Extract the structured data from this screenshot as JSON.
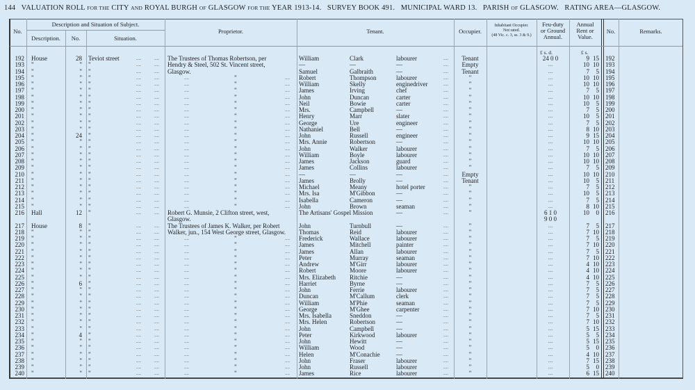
{
  "header": {
    "page_no": "144",
    "title_parts": [
      "VALUATION ROLL",
      "FOR THE",
      "CITY",
      "AND",
      "ROYAL BURGH",
      "OF",
      "GLASGOW",
      "FOR THE",
      "YEAR 1913-14.",
      "SURVEY BOOK 491.",
      "MUNICIPAL WARD 13.",
      "PARISH",
      "OF",
      "GLASGOW.",
      "RATING AREA—GLASGOW."
    ]
  },
  "columns": {
    "no": "No.",
    "description_group": "Description and Situation of Subject.",
    "description": "Description.",
    "number": "No.",
    "situation": "Situation.",
    "proprietor": "Proprietor.",
    "tenant": "Tenant.",
    "occupier": "Occupier.",
    "inhabitant_1": "Inhabitant Occupier.",
    "inhabitant_2": "Not rated.",
    "inhabitant_3": "(48 Vic. c. 3, ss. 3 & 9.)",
    "feu_1": "Feu-duty",
    "feu_2": "or Ground",
    "feu_3": "Annual.",
    "rent_1": "Annual",
    "rent_2": "Rent or",
    "rent_3": "Value.",
    "no2": "No.",
    "remarks": "Remarks.",
    "feu_units": "£  s.  d.",
    "rent_units": "£   s."
  },
  "rows": [
    {
      "no": "192",
      "desc": "House",
      "num": "28",
      "sit": "Teviot street",
      "prop": "The Trustees of Thomas Robertson, per",
      "first": "William",
      "last": "Clark",
      "occ": "labourer",
      "occupier": "Tenant",
      "feu": "24  0  0",
      "rl": "9",
      "rs": "15"
    },
    {
      "no": "193",
      "desc": "\"",
      "num": "\"",
      "sit": "\"",
      "prop": "Hendry & Steel, 502 St. Vincent street,",
      "first": "—",
      "last": "—",
      "occ": "—",
      "occupier": "Empty",
      "feu": "....",
      "rl": "10",
      "rs": "10"
    },
    {
      "no": "194",
      "desc": "\"",
      "num": "\"",
      "sit": "\"",
      "prop": "Glasgow.",
      "first": "Samuel",
      "last": "Galbraith",
      "occ": "—",
      "occupier": "Tenant",
      "feu": "....",
      "rl": "7",
      "rs": "5"
    },
    {
      "no": "195",
      "desc": "\"",
      "num": "\"",
      "sit": "\"",
      "prop": "",
      "first": "Robert",
      "last": "Thompson",
      "occ": "labourer",
      "occupier": "\"",
      "feu": "....",
      "rl": "10",
      "rs": "10"
    },
    {
      "no": "196",
      "desc": "\"",
      "num": "\"",
      "sit": "\"",
      "prop": "",
      "first": "William",
      "last": "Skelly",
      "occ": "enginedriver",
      "occupier": "\"",
      "feu": "....",
      "rl": "10",
      "rs": "10"
    },
    {
      "no": "197",
      "desc": "\"",
      "num": "\"",
      "sit": "\"",
      "prop": "",
      "first": "James",
      "last": "Irving",
      "occ": "chef",
      "occupier": "\"",
      "feu": "....",
      "rl": "7",
      "rs": "5"
    },
    {
      "no": "198",
      "desc": "\"",
      "num": "\"",
      "sit": "\"",
      "prop": "",
      "first": "John",
      "last": "Duncan",
      "occ": "carter",
      "occupier": "\"",
      "feu": "....",
      "rl": "10",
      "rs": "10"
    },
    {
      "no": "199",
      "desc": "\"",
      "num": "\"",
      "sit": "\"",
      "prop": "",
      "first": "Neil",
      "last": "Bowie",
      "occ": "carter",
      "occupier": "\"",
      "feu": "....",
      "rl": "10",
      "rs": "5"
    },
    {
      "no": "200",
      "desc": "\"",
      "num": "\"",
      "sit": "\"",
      "prop": "",
      "first": "Mrs.",
      "last": "Campbell",
      "occ": "—",
      "occupier": "\"",
      "feu": "....",
      "rl": "7",
      "rs": "5"
    },
    {
      "no": "201",
      "desc": "\"",
      "num": "\"",
      "sit": "\"",
      "prop": "",
      "first": "Henry",
      "last": "Marr",
      "occ": "slater",
      "occupier": "\"",
      "feu": "....",
      "rl": "10",
      "rs": "5"
    },
    {
      "no": "202",
      "desc": "\"",
      "num": "\"",
      "sit": "\"",
      "prop": "",
      "first": "George",
      "last": "Ure",
      "occ": "engineer",
      "occupier": "\"",
      "feu": "....",
      "rl": "7",
      "rs": "5"
    },
    {
      "no": "203",
      "desc": "\"",
      "num": "\"",
      "sit": "\"",
      "prop": "",
      "first": "Nathaniel",
      "last": "Bell",
      "occ": "—",
      "occupier": "\"",
      "feu": "....",
      "rl": "8",
      "rs": "10"
    },
    {
      "no": "204",
      "desc": "\"",
      "num": "24",
      "sit": "\"",
      "prop": "",
      "first": "John",
      "last": "Russell",
      "occ": "engineer",
      "occupier": "\"",
      "feu": "....",
      "rl": "9",
      "rs": "15"
    },
    {
      "no": "205",
      "desc": "\"",
      "num": "\"",
      "sit": "\"",
      "prop": "",
      "first": "Mrs. Annie",
      "last": "Robertson",
      "occ": "—",
      "occupier": "\"",
      "feu": "....",
      "rl": "10",
      "rs": "10"
    },
    {
      "no": "206",
      "desc": "\"",
      "num": "\"",
      "sit": "\"",
      "prop": "",
      "first": "John",
      "last": "Walker",
      "occ": "labourer",
      "occupier": "\"",
      "feu": "....",
      "rl": "7",
      "rs": "5"
    },
    {
      "no": "207",
      "desc": "\"",
      "num": "\"",
      "sit": "\"",
      "prop": "",
      "first": "William",
      "last": "Boyle",
      "occ": "labourer",
      "occupier": "\"",
      "feu": "....",
      "rl": "10",
      "rs": "10"
    },
    {
      "no": "208",
      "desc": "\"",
      "num": "\"",
      "sit": "\"",
      "prop": "",
      "first": "James",
      "last": "Jackson",
      "occ": "guard",
      "occupier": "\"",
      "feu": "....",
      "rl": "10",
      "rs": "10"
    },
    {
      "no": "209",
      "desc": "\"",
      "num": "\"",
      "sit": "\"",
      "prop": "",
      "first": "James",
      "last": "Collins",
      "occ": "labourer",
      "occupier": "\"",
      "feu": "....",
      "rl": "7",
      "rs": "5"
    },
    {
      "no": "210",
      "desc": "\"",
      "num": "\"",
      "sit": "\"",
      "prop": "",
      "first": "—",
      "last": "—",
      "occ": "—",
      "occupier": "Empty",
      "feu": "....",
      "rl": "10",
      "rs": "10"
    },
    {
      "no": "211",
      "desc": "\"",
      "num": "\"",
      "sit": "\"",
      "prop": "",
      "first": "James",
      "last": "Brolly",
      "occ": "—",
      "occupier": "Tenant",
      "feu": "....",
      "rl": "10",
      "rs": "5"
    },
    {
      "no": "212",
      "desc": "\"",
      "num": "\"",
      "sit": "\"",
      "prop": "",
      "first": "Michael",
      "last": "Meany",
      "occ": "hotel porter",
      "occupier": "\"",
      "feu": "....",
      "rl": "7",
      "rs": "5"
    },
    {
      "no": "213",
      "desc": "\"",
      "num": "\"",
      "sit": "\"",
      "prop": "",
      "first": "Mrs. Isa",
      "last": "M'Gibbon",
      "occ": "—",
      "occupier": "\"",
      "feu": "....",
      "rl": "10",
      "rs": "5"
    },
    {
      "no": "214",
      "desc": "\"",
      "num": "\"",
      "sit": "\"",
      "prop": "",
      "first": "Isabella",
      "last": "Cameron",
      "occ": "—",
      "occupier": "\"",
      "feu": "....",
      "rl": "7",
      "rs": "5"
    },
    {
      "no": "215",
      "desc": "\"",
      "num": "\"",
      "sit": "\"",
      "prop": "",
      "first": "John",
      "last": "Brown",
      "occ": "seaman",
      "occupier": "\"",
      "feu": "....",
      "rl": "8",
      "rs": "10"
    },
    {
      "no": "216",
      "desc": "Hall",
      "num": "12",
      "sit": "\"",
      "prop": "Robert G. Munsie, 2 Clifton street, west,",
      "first": "The Artisans' Gospel Mission",
      "last": "",
      "occ": "—",
      "occupier": "\"",
      "feu": "6  1  0",
      "rl": "10",
      "rs": "0"
    },
    {
      "no": "",
      "desc": "",
      "num": "",
      "sit": "",
      "prop": "Glasgow.",
      "first": "",
      "last": "",
      "occ": "",
      "occupier": "",
      "feu": "9  0  0",
      "rl": "",
      "rs": ""
    },
    {
      "no": "217",
      "desc": "House",
      "num": "8",
      "sit": "\"",
      "prop": "The Trustees of James K. Walker, per Robert",
      "first": "John",
      "last": "Turnbull",
      "occ": "—",
      "occupier": "\"",
      "feu": "....",
      "rl": "7",
      "rs": "5"
    },
    {
      "no": "218",
      "desc": "\"",
      "num": "\"",
      "sit": "\"",
      "prop": "Walker, jun., 154 West George street, Glasgow.",
      "first": "Thomas",
      "last": "Reid",
      "occ": "labourer",
      "occupier": "\"",
      "feu": "....",
      "rl": "7",
      "rs": "10"
    },
    {
      "no": "219",
      "desc": "\"",
      "num": "\"",
      "sit": "\"",
      "prop": "",
      "first": "Frederick",
      "last": "Wallace",
      "occ": "labourer",
      "occupier": "\"",
      "feu": "....",
      "rl": "7",
      "rs": "5"
    },
    {
      "no": "220",
      "desc": "\"",
      "num": "\"",
      "sit": "\"",
      "prop": "",
      "first": "James",
      "last": "Mitchell",
      "occ": "painter",
      "occupier": "\"",
      "feu": "....",
      "rl": "7",
      "rs": "10"
    },
    {
      "no": "221",
      "desc": "\"",
      "num": "\"",
      "sit": "\"",
      "prop": "",
      "first": "James",
      "last": "Allan",
      "occ": "labourer",
      "occupier": "\"",
      "feu": "....",
      "rl": "7",
      "rs": "5"
    },
    {
      "no": "222",
      "desc": "\"",
      "num": "\"",
      "sit": "\"",
      "prop": "",
      "first": "Peter",
      "last": "Murray",
      "occ": "seaman",
      "occupier": "\"",
      "feu": "....",
      "rl": "7",
      "rs": "10"
    },
    {
      "no": "223",
      "desc": "\"",
      "num": "\"",
      "sit": "\"",
      "prop": "",
      "first": "Andrew",
      "last": "M'Girr",
      "occ": "labourer",
      "occupier": "\"",
      "feu": "....",
      "rl": "4",
      "rs": "10"
    },
    {
      "no": "224",
      "desc": "\"",
      "num": "\"",
      "sit": "\"",
      "prop": "",
      "first": "Robert",
      "last": "Moore",
      "occ": "labourer",
      "occupier": "\"",
      "feu": "....",
      "rl": "4",
      "rs": "10"
    },
    {
      "no": "225",
      "desc": "\"",
      "num": "\"",
      "sit": "\"",
      "prop": "",
      "first": "Mrs. Elizabeth",
      "last": "Ritchie",
      "occ": "—",
      "occupier": "\"",
      "feu": "....",
      "rl": "4",
      "rs": "10"
    },
    {
      "no": "226",
      "desc": "\"",
      "num": "6",
      "sit": "\"",
      "prop": "",
      "first": "Harriet",
      "last": "Byrne",
      "occ": "—",
      "occupier": "\"",
      "feu": "....",
      "rl": "7",
      "rs": "5"
    },
    {
      "no": "227",
      "desc": "\"",
      "num": "\"",
      "sit": "\"",
      "prop": "",
      "first": "John",
      "last": "Ferrie",
      "occ": "labourer",
      "occupier": "\"",
      "feu": "....",
      "rl": "7",
      "rs": "5"
    },
    {
      "no": "228",
      "desc": "\"",
      "num": "\"",
      "sit": "\"",
      "prop": "",
      "first": "Duncan",
      "last": "M'Callum",
      "occ": "clerk",
      "occupier": "\"",
      "feu": "....",
      "rl": "7",
      "rs": "5"
    },
    {
      "no": "229",
      "desc": "\"",
      "num": "\"",
      "sit": "\"",
      "prop": "",
      "first": "William",
      "last": "M'Phie",
      "occ": "seaman",
      "occupier": "\"",
      "feu": "....",
      "rl": "7",
      "rs": "5"
    },
    {
      "no": "230",
      "desc": "\"",
      "num": "\"",
      "sit": "\"",
      "prop": "",
      "first": "George",
      "last": "M'Ghee",
      "occ": "carpenter",
      "occupier": "\"",
      "feu": "....",
      "rl": "7",
      "rs": "10"
    },
    {
      "no": "231",
      "desc": "\"",
      "num": "\"",
      "sit": "\"",
      "prop": "",
      "first": "Mrs. Isabella",
      "last": "Sneddon",
      "occ": "—",
      "occupier": "\"",
      "feu": "....",
      "rl": "7",
      "rs": "5"
    },
    {
      "no": "232",
      "desc": "\"",
      "num": "\"",
      "sit": "\"",
      "prop": "",
      "first": "Mrs. Helen",
      "last": "Robertson",
      "occ": "—",
      "occupier": "\"",
      "feu": "....",
      "rl": "7",
      "rs": "10"
    },
    {
      "no": "233",
      "desc": "\"",
      "num": "\"",
      "sit": "\"",
      "prop": "",
      "first": "John",
      "last": "Campbell",
      "occ": "—",
      "occupier": "\"",
      "feu": "....",
      "rl": "5",
      "rs": "15"
    },
    {
      "no": "234",
      "desc": "\"",
      "num": "4",
      "sit": "\"",
      "prop": "",
      "first": "Peter",
      "last": "Kirkwood",
      "occ": "labourer",
      "occupier": "\"",
      "feu": "....",
      "rl": "5",
      "rs": "5"
    },
    {
      "no": "235",
      "desc": "\"",
      "num": "\"",
      "sit": "\"",
      "prop": "",
      "first": "John",
      "last": "Hewitt",
      "occ": "—",
      "occupier": "\"",
      "feu": "....",
      "rl": "5",
      "rs": "15"
    },
    {
      "no": "236",
      "desc": "\"",
      "num": "\"",
      "sit": "\"",
      "prop": "",
      "first": "William",
      "last": "Wood",
      "occ": "—",
      "occupier": "\"",
      "feu": "....",
      "rl": "5",
      "rs": "0"
    },
    {
      "no": "237",
      "desc": "\"",
      "num": "\"",
      "sit": "\"",
      "prop": "",
      "first": "Helen",
      "last": "M'Conachie",
      "occ": "—",
      "occupier": "\"",
      "feu": "....",
      "rl": "4",
      "rs": "10"
    },
    {
      "no": "238",
      "desc": "\"",
      "num": "\"",
      "sit": "\"",
      "prop": "",
      "first": "John",
      "last": "Fraser",
      "occ": "labourer",
      "occupier": "\"",
      "feu": "....",
      "rl": "7",
      "rs": "15"
    },
    {
      "no": "239",
      "desc": "\"",
      "num": "\"",
      "sit": "\"",
      "prop": "",
      "first": "John",
      "last": "Russell",
      "occ": "labourer",
      "occupier": "\"",
      "feu": "....",
      "rl": "5",
      "rs": "0"
    },
    {
      "no": "240",
      "desc": "\"",
      "num": "\"",
      "sit": "\"",
      "prop": "",
      "first": "James",
      "last": "Rice",
      "occ": "labourer",
      "occupier": "\"",
      "feu": "....",
      "rl": "6",
      "rs": "15"
    }
  ],
  "ditto": "\"",
  "dots": "...."
}
